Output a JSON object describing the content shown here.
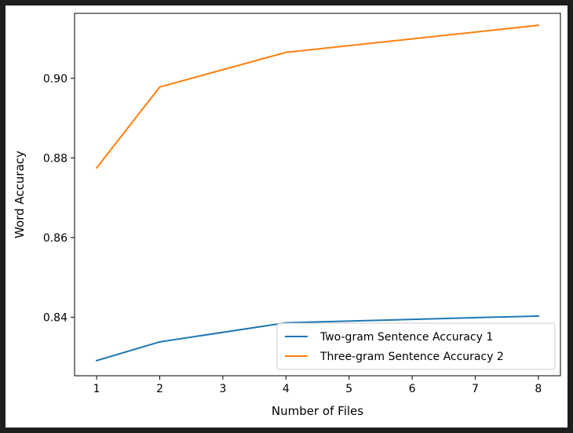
{
  "chart_data": {
    "type": "line",
    "title": "",
    "xlabel": "Number of Files",
    "ylabel": "Word Accuracy",
    "x": [
      1,
      2,
      4,
      8
    ],
    "xlim": [
      0.65,
      8.35
    ],
    "ylim": [
      0.8253,
      0.9163
    ],
    "xticks": [
      "1",
      "2",
      "3",
      "4",
      "5",
      "6",
      "7",
      "8"
    ],
    "yticks": [
      "0.84",
      "0.86",
      "0.88",
      "0.90"
    ],
    "grid": false,
    "legend_position": "lower right",
    "series": [
      {
        "name": "Two-gram Sentence Accuracy 1",
        "values": [
          0.8291,
          0.8338,
          0.8386,
          0.8403
        ],
        "color": "#1f77b4"
      },
      {
        "name": "Three-gram Sentence Accuracy 2",
        "values": [
          0.8775,
          0.8978,
          0.9065,
          0.9133
        ],
        "color": "#ff7f0e"
      }
    ]
  }
}
